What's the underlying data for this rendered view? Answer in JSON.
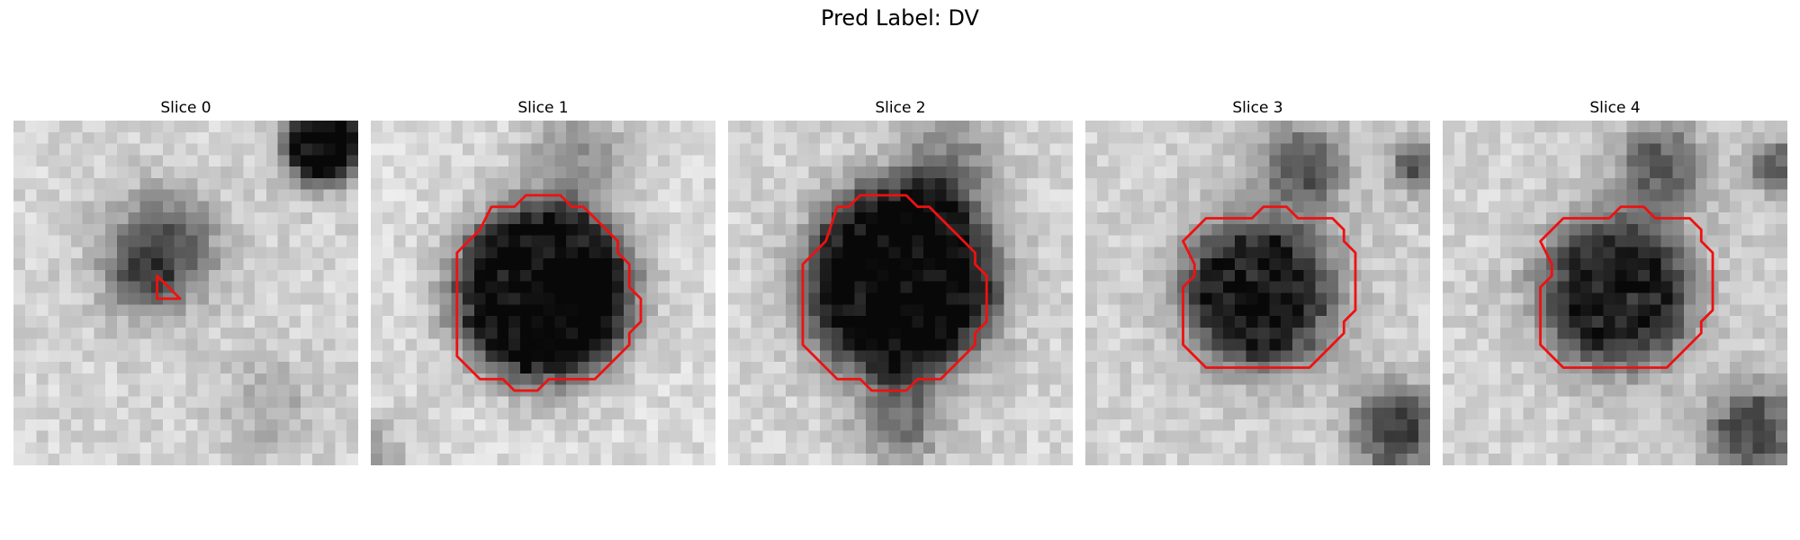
{
  "figure": {
    "title": "Pred Label: DV"
  },
  "colors": {
    "contour": "#ee1111",
    "background": "#ffffff"
  },
  "panels": [
    {
      "title": "Slice 0"
    },
    {
      "title": "Slice 1"
    },
    {
      "title": "Slice 2"
    },
    {
      "title": "Slice 3"
    },
    {
      "title": "Slice 4"
    }
  ]
}
